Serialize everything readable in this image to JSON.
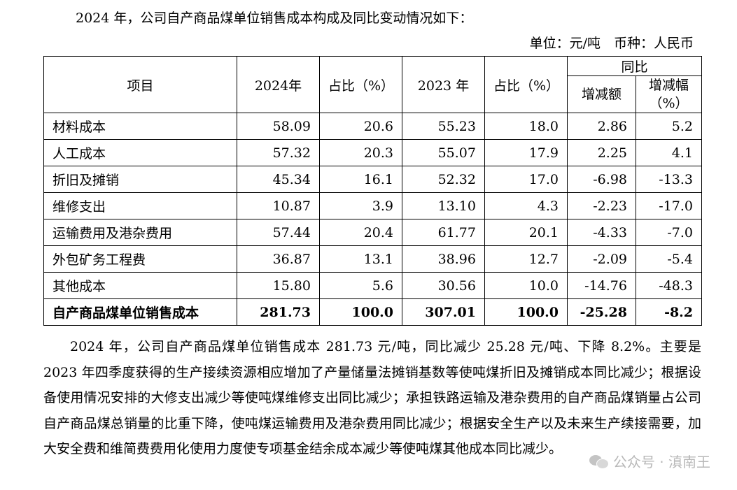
{
  "intro": "2024 年，公司自产商品煤单位销售成本构成及同比变动情况如下：",
  "unit": "单位：元/吨　币种：人民币",
  "table": {
    "headers": {
      "item": "项目",
      "y2024": "2024年",
      "share1": "占比（%）",
      "y2023": "2023 年",
      "share2": "占比（%）",
      "yoy": "同比",
      "change": "增减额",
      "change_pct": "增减幅（%）"
    },
    "rows": [
      {
        "name": "材料成本",
        "v2024": "58.09",
        "s2024": "20.6",
        "v2023": "55.23",
        "s2023": "18.0",
        "chg": "2.86",
        "pct": "5.2"
      },
      {
        "name": "人工成本",
        "v2024": "57.32",
        "s2024": "20.3",
        "v2023": "55.07",
        "s2023": "17.9",
        "chg": "2.25",
        "pct": "4.1"
      },
      {
        "name": "折旧及摊销",
        "v2024": "45.34",
        "s2024": "16.1",
        "v2023": "52.32",
        "s2023": "17.0",
        "chg": "-6.98",
        "pct": "-13.3"
      },
      {
        "name": "维修支出",
        "v2024": "10.87",
        "s2024": "3.9",
        "v2023": "13.10",
        "s2023": "4.3",
        "chg": "-2.23",
        "pct": "-17.0"
      },
      {
        "name": "运输费用及港杂费用",
        "v2024": "57.44",
        "s2024": "20.4",
        "v2023": "61.77",
        "s2023": "20.1",
        "chg": "-4.33",
        "pct": "-7.0"
      },
      {
        "name": "外包矿务工程费",
        "v2024": "36.87",
        "s2024": "13.1",
        "v2023": "38.96",
        "s2023": "12.7",
        "chg": "-2.09",
        "pct": "-5.4"
      },
      {
        "name": "其他成本",
        "v2024": "15.80",
        "s2024": "5.6",
        "v2023": "30.56",
        "s2023": "10.0",
        "chg": "-14.76",
        "pct": "-48.3"
      }
    ],
    "total": {
      "name": "自产商品煤单位销售成本",
      "v2024": "281.73",
      "s2024": "100.0",
      "v2023": "307.01",
      "s2023": "100.0",
      "chg": "-25.28",
      "pct": "-8.2"
    }
  },
  "paragraph": "2024 年，公司自产商品煤单位销售成本 281.73 元/吨，同比减少 25.28 元/吨、下降 8.2%。主要是 2023 年四季度获得的生产接续资源相应增加了产量储量法摊销基数等使吨煤折旧及摊销成本同比减少；根据设备使用情况安排的大修支出减少等使吨煤维修支出同比减少；承担铁路运输及港杂费用的自产商品煤销量占公司自产商品煤总销量的比重下降，使吨煤运输费用及港杂费用同比减少；根据安全生产以及未来生产续接需要，加大安全费和维简费费用化使用力度使专项基金结余成本减少等使吨煤其他成本同比减少。",
  "watermark": "公众号 · 滇南王"
}
